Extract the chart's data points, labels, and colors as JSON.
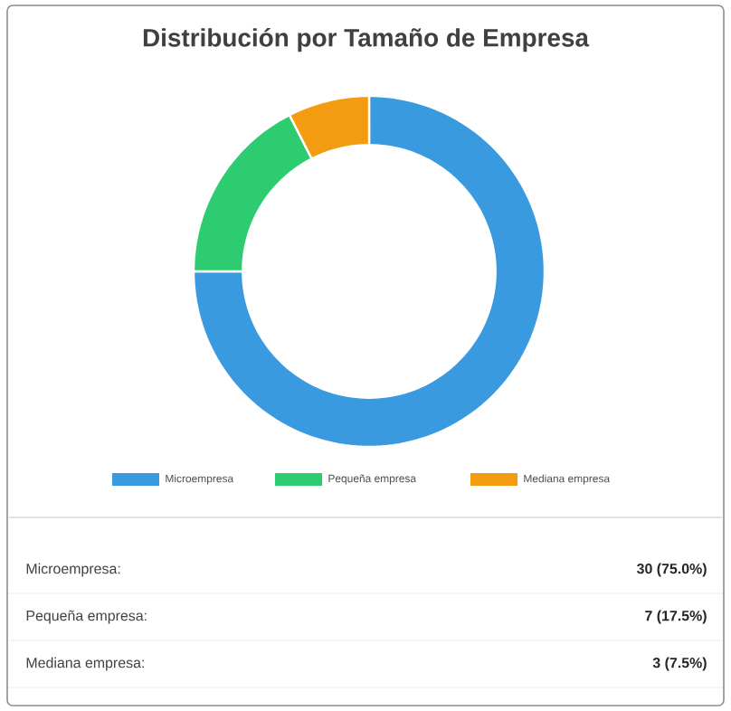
{
  "chart_data": {
    "type": "donut",
    "title": "Distribución por Tamaño de Empresa",
    "categories": [
      "Microempresa",
      "Pequeña empresa",
      "Mediana empresa"
    ],
    "values": [
      75.0,
      17.5,
      7.5
    ],
    "colors": [
      "#3a9ae0",
      "#2ecc71",
      "#f39c12"
    ],
    "annotations": [
      "Microempresa:",
      "30 (75.0%)",
      "Pequeña empresa:",
      "7 (17.5%)",
      "Mediana empresa:",
      "3 (7.5%)"
    ],
    "legend": "bottom"
  }
}
